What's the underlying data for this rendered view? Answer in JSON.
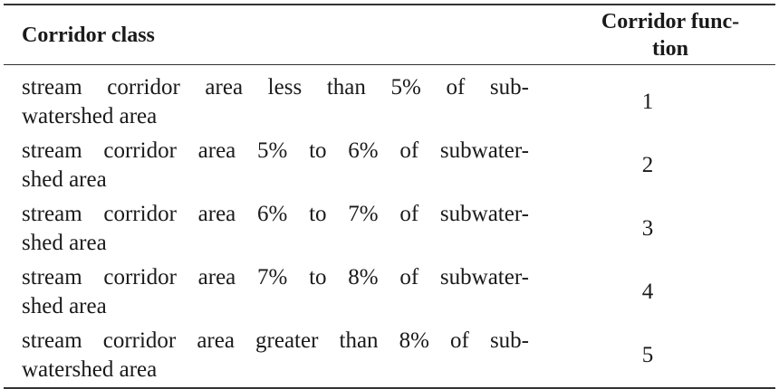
{
  "header": {
    "class_label": "Corridor class",
    "function_label_line1": "Corridor func-",
    "function_label_line2": "tion"
  },
  "rows": [
    {
      "class_line1": "stream corridor area less than 5% of sub-",
      "class_line2": "watershed area",
      "function": "1"
    },
    {
      "class_line1": "stream corridor area 5% to 6% of subwater-",
      "class_line2": "shed area",
      "function": "2"
    },
    {
      "class_line1": "stream corridor area 6% to 7% of subwater-",
      "class_line2": "shed area",
      "function": "3"
    },
    {
      "class_line1": "stream corridor area 7% to 8% of subwater-",
      "class_line2": "shed area",
      "function": "4"
    },
    {
      "class_line1": "stream corridor area greater than 8% of sub-",
      "class_line2": "watershed area",
      "function": "5"
    }
  ]
}
